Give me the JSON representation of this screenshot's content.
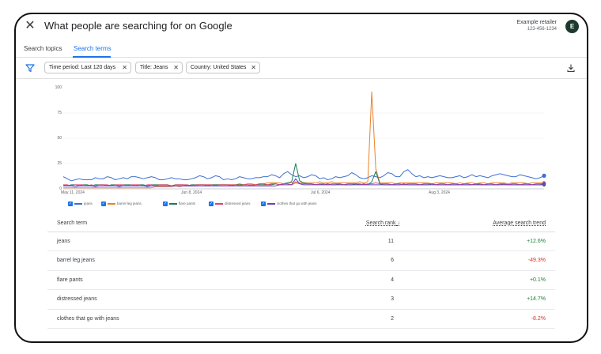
{
  "header": {
    "title": "What people are searching for on Google",
    "retailer_name": "Example retailer",
    "retailer_id": "123-456-1234",
    "avatar_letter": "E",
    "close_icon": "close-icon"
  },
  "tabs": [
    {
      "label": "Search topics",
      "active": false
    },
    {
      "label": "Search terms",
      "active": true
    }
  ],
  "filters": {
    "icon": "filter-icon",
    "chips": [
      {
        "label": "Time period: Last 120 days"
      },
      {
        "label": "Title: Jeans"
      },
      {
        "label": "Country: United States"
      }
    ],
    "download_icon": "download-icon"
  },
  "chart_data": {
    "type": "line",
    "y_ticks": [
      "100",
      "75",
      "50",
      "25",
      "0"
    ],
    "x_ticks": [
      "May 11, 2024",
      "Jun 8, 2024",
      "Jul 6, 2024",
      "Aug 3, 2024"
    ],
    "ylim": [
      0,
      100
    ],
    "x_count": 121,
    "series": [
      {
        "name": "jeans",
        "color": "#3b6fd4",
        "values": [
          12,
          10,
          8,
          9,
          10,
          9,
          9,
          9,
          11,
          10,
          10,
          12,
          11,
          9,
          10,
          11,
          10,
          12,
          12,
          11,
          10,
          11,
          12,
          11,
          9,
          9,
          10,
          11,
          10,
          10,
          9,
          9,
          10,
          11,
          13,
          12,
          10,
          11,
          13,
          12,
          9,
          10,
          9,
          10,
          12,
          11,
          10,
          10,
          11,
          11,
          12,
          12,
          14,
          13,
          11,
          15,
          17,
          14,
          12,
          13,
          11,
          12,
          14,
          13,
          10,
          11,
          9,
          10,
          12,
          11,
          12,
          13,
          16,
          14,
          11,
          10,
          11,
          13,
          12,
          11,
          13,
          16,
          15,
          12,
          12,
          17,
          19,
          15,
          12,
          13,
          11,
          12,
          11,
          12,
          13,
          12,
          11,
          11,
          12,
          13,
          11,
          12,
          14,
          12,
          13,
          12,
          11,
          13,
          14,
          15,
          14,
          13,
          12,
          12,
          14,
          13,
          12,
          11,
          10,
          11,
          13
        ]
      },
      {
        "name": "barrel leg jeans",
        "color": "#e8832a",
        "values": [
          1,
          1,
          1,
          1,
          1,
          1,
          1,
          1,
          1,
          1,
          1,
          1,
          1,
          1,
          1,
          1,
          1,
          1,
          1,
          1,
          1,
          1,
          1,
          2,
          2,
          2,
          2,
          2,
          3,
          2,
          3,
          3,
          3,
          3,
          4,
          4,
          4,
          4,
          4,
          4,
          4,
          4,
          4,
          4,
          5,
          4,
          5,
          5,
          4,
          5,
          5,
          6,
          6,
          6,
          6,
          5,
          6,
          6,
          7,
          6,
          6,
          6,
          6,
          6,
          7,
          6,
          6,
          7,
          6,
          6,
          6,
          6,
          6,
          6,
          7,
          6,
          7,
          96,
          20,
          6,
          6,
          6,
          6,
          5,
          6,
          6,
          6,
          6,
          6,
          6,
          6,
          6,
          5,
          6,
          6,
          6,
          6,
          6,
          5,
          6,
          5,
          6,
          6,
          5,
          6,
          6,
          5,
          6,
          6,
          6,
          6,
          5,
          6,
          6,
          6,
          6,
          5,
          6,
          6,
          6,
          6
        ]
      },
      {
        "name": "flare pants",
        "color": "#1e7a5a",
        "values": [
          4,
          3,
          4,
          4,
          3,
          4,
          4,
          3,
          4,
          4,
          4,
          3,
          4,
          4,
          3,
          4,
          4,
          4,
          3,
          4,
          4,
          3,
          4,
          4,
          4,
          4,
          4,
          3,
          4,
          4,
          4,
          3,
          4,
          4,
          4,
          4,
          3,
          4,
          4,
          4,
          4,
          4,
          3,
          4,
          4,
          4,
          4,
          3,
          4,
          4,
          4,
          4,
          4,
          5,
          4,
          5,
          6,
          7,
          25,
          8,
          6,
          5,
          5,
          4,
          5,
          4,
          5,
          4,
          4,
          5,
          4,
          4,
          4,
          5,
          4,
          5,
          4,
          7,
          17,
          5,
          4,
          4,
          4,
          4,
          4,
          5,
          4,
          4,
          4,
          4,
          4,
          4,
          5,
          4,
          4,
          4,
          4,
          4,
          4,
          4,
          4,
          4,
          4,
          5,
          4,
          4,
          4,
          4,
          4,
          4,
          5,
          4,
          4,
          4,
          4,
          4,
          4,
          4,
          4,
          4,
          4
        ]
      },
      {
        "name": "distressed jeans",
        "color": "#d6466e",
        "values": [
          4,
          4,
          3,
          4,
          4,
          4,
          3,
          4,
          3,
          4,
          4,
          4,
          3,
          4,
          4,
          4,
          3,
          4,
          4,
          4,
          3,
          4,
          4,
          3,
          4,
          4,
          4,
          3,
          4,
          4,
          4,
          4,
          3,
          4,
          4,
          4,
          4,
          4,
          3,
          4,
          4,
          4,
          4,
          4,
          3,
          4,
          4,
          4,
          4,
          5,
          5,
          4,
          5,
          5,
          4,
          5,
          5,
          4,
          6,
          5,
          5,
          5,
          5,
          4,
          5,
          5,
          4,
          5,
          5,
          5,
          4,
          5,
          5,
          5,
          5,
          4,
          5,
          5,
          6,
          5,
          5,
          5,
          4,
          5,
          5,
          4,
          5,
          5,
          5,
          4,
          5,
          5,
          5,
          4,
          5,
          5,
          4,
          5,
          5,
          4,
          5,
          5,
          4,
          5,
          5,
          4,
          5,
          5,
          4,
          5,
          5,
          4,
          5,
          5,
          4,
          5,
          5,
          4,
          5,
          5,
          5
        ]
      },
      {
        "name": "clothes that go with jeans",
        "color": "#6a3fc0",
        "values": [
          3,
          3,
          3,
          2,
          3,
          3,
          3,
          3,
          2,
          3,
          3,
          3,
          3,
          3,
          2,
          3,
          3,
          3,
          3,
          3,
          3,
          2,
          3,
          3,
          3,
          3,
          3,
          3,
          3,
          3,
          3,
          3,
          3,
          3,
          3,
          3,
          3,
          3,
          3,
          3,
          3,
          3,
          3,
          3,
          3,
          3,
          3,
          3,
          3,
          3,
          3,
          3,
          3,
          3,
          4,
          4,
          4,
          4,
          10,
          5,
          4,
          4,
          4,
          4,
          4,
          4,
          4,
          4,
          4,
          4,
          4,
          4,
          4,
          4,
          4,
          4,
          4,
          4,
          4,
          4,
          4,
          4,
          4,
          4,
          4,
          4,
          4,
          4,
          4,
          4,
          4,
          4,
          4,
          4,
          4,
          4,
          4,
          4,
          4,
          4,
          4,
          4,
          4,
          4,
          4,
          4,
          4,
          4,
          4,
          4,
          4,
          4,
          4,
          4,
          4,
          4,
          4,
          4,
          4,
          4,
          5
        ]
      }
    ]
  },
  "table": {
    "headers": {
      "term": "Search term",
      "rank": "Search rank",
      "trend": "Average search trend"
    },
    "rows": [
      {
        "term": "jeans",
        "rank": "11",
        "trend": "+12.6%",
        "dir": "pos"
      },
      {
        "term": "barrel leg jeans",
        "rank": "6",
        "trend": "-49.3%",
        "dir": "neg"
      },
      {
        "term": "flare pants",
        "rank": "4",
        "trend": "+0.1%",
        "dir": "pos"
      },
      {
        "term": "distressed jeans",
        "rank": "3",
        "trend": "+14.7%",
        "dir": "pos"
      },
      {
        "term": "clothes that go with jeans",
        "rank": "2",
        "trend": "-8.2%",
        "dir": "neg"
      }
    ]
  }
}
